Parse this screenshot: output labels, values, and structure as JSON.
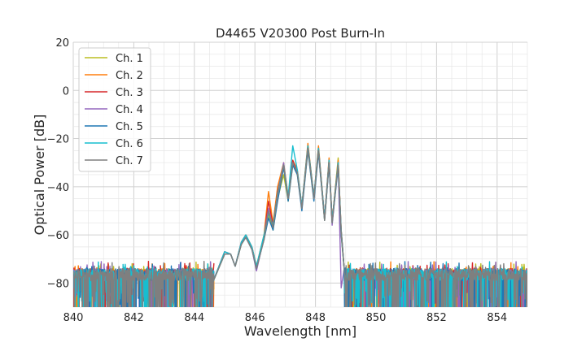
{
  "chart_data": {
    "type": "line",
    "title": "D4465 V20300 Post Burn-In",
    "xlabel": "Wavelength [nm]",
    "ylabel": "Optical Power [dB]",
    "xlim": [
      840,
      855
    ],
    "ylim": [
      -90,
      20
    ],
    "xticks": [
      "840",
      "842",
      "844",
      "846",
      "848",
      "850",
      "852",
      "854"
    ],
    "yticks": [
      "20",
      "0",
      "−20",
      "−40",
      "−60",
      "−80"
    ],
    "grid": true,
    "legend_position": "top-left",
    "noise_floor_db": -74,
    "passband_nm": [
      845.0,
      848.9
    ],
    "series": [
      {
        "name": "Ch. 1",
        "color": "#bcbd22",
        "points": [
          [
            844.6,
            -80
          ],
          [
            845.0,
            -68
          ],
          [
            845.2,
            -68
          ],
          [
            845.35,
            -73
          ],
          [
            845.55,
            -64
          ],
          [
            845.7,
            -61
          ],
          [
            845.9,
            -66
          ],
          [
            846.05,
            -73
          ],
          [
            846.3,
            -62
          ],
          [
            846.45,
            -52
          ],
          [
            846.6,
            -58
          ],
          [
            846.75,
            -45
          ],
          [
            846.95,
            -35
          ],
          [
            847.1,
            -46
          ],
          [
            847.25,
            -31
          ],
          [
            847.4,
            -35
          ],
          [
            847.55,
            -49
          ],
          [
            847.75,
            -25
          ],
          [
            847.95,
            -45
          ],
          [
            848.1,
            -25
          ],
          [
            848.3,
            -54
          ],
          [
            848.45,
            -30
          ],
          [
            848.55,
            -55
          ],
          [
            848.75,
            -28
          ],
          [
            848.85,
            -60
          ],
          [
            848.95,
            -74
          ]
        ]
      },
      {
        "name": "Ch. 2",
        "color": "#ff7f0e",
        "points": [
          [
            844.6,
            -80
          ],
          [
            845.0,
            -67
          ],
          [
            845.2,
            -68
          ],
          [
            845.35,
            -73
          ],
          [
            845.55,
            -63
          ],
          [
            845.7,
            -60
          ],
          [
            845.9,
            -65
          ],
          [
            846.05,
            -73
          ],
          [
            846.3,
            -60
          ],
          [
            846.45,
            -42
          ],
          [
            846.6,
            -55
          ],
          [
            846.75,
            -40
          ],
          [
            846.95,
            -30
          ],
          [
            847.1,
            -44
          ],
          [
            847.25,
            -29
          ],
          [
            847.4,
            -33
          ],
          [
            847.55,
            -48
          ],
          [
            847.75,
            -22
          ],
          [
            847.95,
            -44
          ],
          [
            848.1,
            -23
          ],
          [
            848.3,
            -53
          ],
          [
            848.45,
            -28
          ],
          [
            848.55,
            -54
          ],
          [
            848.75,
            -29
          ],
          [
            848.85,
            -58
          ],
          [
            848.95,
            -74
          ]
        ]
      },
      {
        "name": "Ch. 3",
        "color": "#d62728",
        "points": [
          [
            844.6,
            -80
          ],
          [
            845.0,
            -67
          ],
          [
            845.2,
            -68
          ],
          [
            845.35,
            -73
          ],
          [
            845.55,
            -63
          ],
          [
            845.7,
            -60
          ],
          [
            845.9,
            -65
          ],
          [
            846.05,
            -73
          ],
          [
            846.3,
            -61
          ],
          [
            846.45,
            -46
          ],
          [
            846.6,
            -56
          ],
          [
            846.75,
            -42
          ],
          [
            846.95,
            -31
          ],
          [
            847.1,
            -45
          ],
          [
            847.25,
            -29
          ],
          [
            847.4,
            -34
          ],
          [
            847.55,
            -48
          ],
          [
            847.75,
            -23
          ],
          [
            847.95,
            -44
          ],
          [
            848.1,
            -24
          ],
          [
            848.3,
            -53
          ],
          [
            848.45,
            -29
          ],
          [
            848.55,
            -54
          ],
          [
            848.75,
            -30
          ],
          [
            848.85,
            -58
          ],
          [
            848.95,
            -74
          ]
        ]
      },
      {
        "name": "Ch. 4",
        "color": "#9467bd",
        "points": [
          [
            844.6,
            -80
          ],
          [
            845.0,
            -67
          ],
          [
            845.2,
            -68
          ],
          [
            845.35,
            -73
          ],
          [
            845.55,
            -63
          ],
          [
            845.7,
            -61
          ],
          [
            845.9,
            -66
          ],
          [
            846.05,
            -75
          ],
          [
            846.3,
            -61
          ],
          [
            846.45,
            -49
          ],
          [
            846.6,
            -57
          ],
          [
            846.75,
            -43
          ],
          [
            846.95,
            -30
          ],
          [
            847.1,
            -45
          ],
          [
            847.25,
            -30
          ],
          [
            847.4,
            -34
          ],
          [
            847.55,
            -49
          ],
          [
            847.75,
            -24
          ],
          [
            847.95,
            -45
          ],
          [
            848.1,
            -25
          ],
          [
            848.3,
            -53
          ],
          [
            848.45,
            -30
          ],
          [
            848.55,
            -56
          ],
          [
            848.75,
            -30
          ],
          [
            848.85,
            -82
          ],
          [
            848.95,
            -74
          ]
        ]
      },
      {
        "name": "Ch. 5",
        "color": "#1f77b4",
        "points": [
          [
            844.6,
            -80
          ],
          [
            845.0,
            -68
          ],
          [
            845.2,
            -68
          ],
          [
            845.35,
            -73
          ],
          [
            845.55,
            -64
          ],
          [
            845.7,
            -61
          ],
          [
            845.9,
            -66
          ],
          [
            846.05,
            -74
          ],
          [
            846.3,
            -62
          ],
          [
            846.45,
            -53
          ],
          [
            846.6,
            -58
          ],
          [
            846.75,
            -46
          ],
          [
            846.95,
            -32
          ],
          [
            847.1,
            -46
          ],
          [
            847.25,
            -31
          ],
          [
            847.4,
            -35
          ],
          [
            847.55,
            -50
          ],
          [
            847.75,
            -25
          ],
          [
            847.95,
            -46
          ],
          [
            848.1,
            -26
          ],
          [
            848.3,
            -54
          ],
          [
            848.45,
            -31
          ],
          [
            848.55,
            -55
          ],
          [
            848.75,
            -32
          ],
          [
            848.85,
            -60
          ],
          [
            848.95,
            -74
          ]
        ]
      },
      {
        "name": "Ch. 6",
        "color": "#17becf",
        "points": [
          [
            844.6,
            -80
          ],
          [
            845.0,
            -67
          ],
          [
            845.2,
            -68
          ],
          [
            845.35,
            -73
          ],
          [
            845.55,
            -63
          ],
          [
            845.7,
            -60
          ],
          [
            845.9,
            -65
          ],
          [
            846.05,
            -73
          ],
          [
            846.3,
            -60
          ],
          [
            846.45,
            -51
          ],
          [
            846.6,
            -56
          ],
          [
            846.75,
            -43
          ],
          [
            846.95,
            -31
          ],
          [
            847.1,
            -44
          ],
          [
            847.25,
            -23
          ],
          [
            847.4,
            -33
          ],
          [
            847.55,
            -48
          ],
          [
            847.75,
            -23
          ],
          [
            847.95,
            -44
          ],
          [
            848.1,
            -24
          ],
          [
            848.3,
            -53
          ],
          [
            848.45,
            -29
          ],
          [
            848.55,
            -54
          ],
          [
            848.75,
            -30
          ],
          [
            848.85,
            -58
          ],
          [
            848.95,
            -74
          ]
        ]
      },
      {
        "name": "Ch. 7",
        "color": "#7f7f7f",
        "points": [
          [
            844.6,
            -80
          ],
          [
            845.0,
            -68
          ],
          [
            845.2,
            -68
          ],
          [
            845.35,
            -73
          ],
          [
            845.55,
            -64
          ],
          [
            845.7,
            -61
          ],
          [
            845.9,
            -66
          ],
          [
            846.05,
            -74
          ],
          [
            846.3,
            -62
          ],
          [
            846.45,
            -50
          ],
          [
            846.6,
            -57
          ],
          [
            846.75,
            -44
          ],
          [
            846.95,
            -31
          ],
          [
            847.1,
            -45
          ],
          [
            847.25,
            -30
          ],
          [
            847.4,
            -34
          ],
          [
            847.55,
            -49
          ],
          [
            847.75,
            -24
          ],
          [
            847.95,
            -45
          ],
          [
            848.1,
            -25
          ],
          [
            848.3,
            -54
          ],
          [
            848.45,
            -30
          ],
          [
            848.55,
            -55
          ],
          [
            848.75,
            -31
          ],
          [
            848.85,
            -59
          ],
          [
            848.95,
            -74
          ]
        ]
      }
    ]
  }
}
